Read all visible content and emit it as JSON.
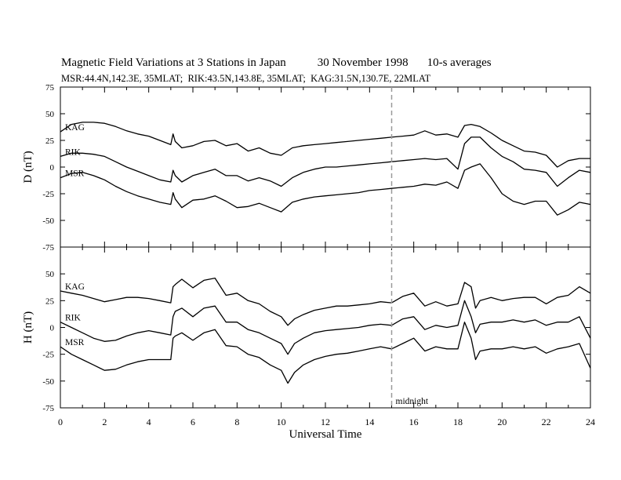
{
  "header": {
    "title": "Magnetic Field Variations at 3 Stations in Japan",
    "date": "30 November 1998",
    "averaging": "10-s averages",
    "stations_line": "MSR:44.4N,142.3E, 35MLAT;  RIK:43.5N,143.8E, 35MLAT;  KAG:31.5N,130.7E, 22MLAT"
  },
  "chart_data": [
    {
      "type": "line",
      "panel": "top",
      "ylabel": "D (nT)",
      "xlim": [
        0,
        24
      ],
      "ylim": [
        -75,
        75
      ],
      "yticks": [
        75,
        50,
        25,
        0,
        -25,
        -50,
        -75
      ],
      "series": [
        {
          "name": "KAG",
          "x": [
            0,
            0.5,
            1,
            1.5,
            2,
            2.5,
            3,
            3.5,
            4,
            4.5,
            5,
            5.1,
            5.2,
            5.5,
            6,
            6.5,
            7,
            7.5,
            8,
            8.5,
            9,
            9.5,
            10,
            10.5,
            11,
            11.5,
            12,
            12.5,
            13,
            13.5,
            14,
            14.5,
            15,
            15.5,
            16,
            16.5,
            17,
            17.5,
            18,
            18.3,
            18.6,
            19,
            19.5,
            20,
            20.5,
            21,
            21.5,
            22,
            22.5,
            23,
            23.5,
            24
          ],
          "y": [
            33,
            40,
            42,
            42,
            41,
            38,
            34,
            31,
            29,
            25,
            21,
            31,
            24,
            18,
            20,
            24,
            25,
            20,
            22,
            15,
            18,
            13,
            11,
            18,
            20,
            21,
            22,
            23,
            24,
            25,
            26,
            27,
            28,
            29,
            30,
            34,
            30,
            31,
            28,
            39,
            40,
            38,
            32,
            25,
            20,
            15,
            14,
            11,
            0,
            6,
            8,
            8
          ]
        },
        {
          "name": "RIK",
          "x": [
            0,
            0.5,
            1,
            1.5,
            2,
            2.5,
            3,
            3.5,
            4,
            4.5,
            5,
            5.1,
            5.2,
            5.5,
            6,
            6.5,
            7,
            7.5,
            8,
            8.5,
            9,
            9.5,
            10,
            10.5,
            11,
            11.5,
            12,
            12.5,
            13,
            13.5,
            14,
            14.5,
            15,
            15.5,
            16,
            16.5,
            17,
            17.5,
            18,
            18.3,
            18.6,
            19,
            19.5,
            20,
            20.5,
            21,
            21.5,
            22,
            22.5,
            23,
            23.5,
            24
          ],
          "y": [
            10,
            13,
            13,
            12,
            10,
            5,
            0,
            -4,
            -8,
            -12,
            -14,
            -3,
            -8,
            -14,
            -8,
            -5,
            -2,
            -8,
            -8,
            -13,
            -10,
            -13,
            -18,
            -10,
            -5,
            -2,
            0,
            0,
            1,
            2,
            3,
            4,
            5,
            6,
            7,
            8,
            7,
            8,
            -2,
            22,
            28,
            28,
            18,
            10,
            5,
            -2,
            -3,
            -5,
            -18,
            -10,
            -3,
            -5
          ]
        },
        {
          "name": "MSR",
          "x": [
            0,
            0.5,
            1,
            1.5,
            2,
            2.5,
            3,
            3.5,
            4,
            4.5,
            5,
            5.1,
            5.2,
            5.5,
            6,
            6.5,
            7,
            7.5,
            8,
            8.5,
            9,
            9.5,
            10,
            10.5,
            11,
            11.5,
            12,
            12.5,
            13,
            13.5,
            14,
            14.5,
            15,
            15.5,
            16,
            16.5,
            17,
            17.5,
            18,
            18.3,
            18.6,
            19,
            19.5,
            20,
            20.5,
            21,
            21.5,
            22,
            22.5,
            23,
            23.5,
            24
          ],
          "y": [
            -10,
            -6,
            -5,
            -8,
            -12,
            -18,
            -23,
            -27,
            -30,
            -33,
            -35,
            -24,
            -30,
            -38,
            -31,
            -30,
            -27,
            -32,
            -38,
            -37,
            -34,
            -38,
            -42,
            -33,
            -30,
            -28,
            -27,
            -26,
            -25,
            -24,
            -22,
            -21,
            -20,
            -19,
            -18,
            -16,
            -17,
            -14,
            -20,
            -3,
            0,
            3,
            -10,
            -25,
            -32,
            -35,
            -32,
            -32,
            -45,
            -40,
            -33,
            -35
          ]
        }
      ],
      "annotations": []
    },
    {
      "type": "line",
      "panel": "bottom",
      "ylabel": "H (nT)",
      "xlabel": "Universal Time",
      "xlim": [
        0,
        24
      ],
      "ylim": [
        -75,
        75
      ],
      "xticks": [
        0,
        2,
        4,
        6,
        8,
        10,
        12,
        14,
        16,
        18,
        20,
        22,
        24
      ],
      "yticks": [
        50,
        25,
        0,
        -25,
        -50,
        -75
      ],
      "series": [
        {
          "name": "KAG",
          "x": [
            0,
            0.5,
            1,
            1.5,
            2,
            2.5,
            3,
            3.5,
            4,
            4.5,
            5,
            5.1,
            5.2,
            5.5,
            6,
            6.5,
            7,
            7.5,
            8,
            8.5,
            9,
            9.5,
            10,
            10.3,
            10.6,
            11,
            11.5,
            12,
            12.5,
            13,
            13.5,
            14,
            14.5,
            15,
            15.5,
            16,
            16.5,
            17,
            17.5,
            18,
            18.3,
            18.6,
            18.8,
            19,
            19.5,
            20,
            20.5,
            21,
            21.5,
            22,
            22.5,
            23,
            23.5,
            24
          ],
          "y": [
            34,
            32,
            30,
            27,
            24,
            26,
            28,
            28,
            27,
            25,
            23,
            38,
            40,
            45,
            37,
            44,
            46,
            30,
            32,
            25,
            22,
            15,
            10,
            2,
            8,
            12,
            16,
            18,
            20,
            20,
            21,
            22,
            24,
            23,
            29,
            32,
            20,
            24,
            20,
            22,
            42,
            38,
            18,
            25,
            28,
            25,
            27,
            28,
            28,
            22,
            28,
            30,
            38,
            32
          ]
        },
        {
          "name": "RIK",
          "x": [
            0,
            0.5,
            1,
            1.5,
            2,
            2.5,
            3,
            3.5,
            4,
            4.5,
            5,
            5.1,
            5.2,
            5.5,
            6,
            6.5,
            7,
            7.5,
            8,
            8.5,
            9,
            9.5,
            10,
            10.3,
            10.6,
            11,
            11.5,
            12,
            12.5,
            13,
            13.5,
            14,
            14.5,
            15,
            15.5,
            16,
            16.5,
            17,
            17.5,
            18,
            18.3,
            18.6,
            18.8,
            19,
            19.5,
            20,
            20.5,
            21,
            21.5,
            22,
            22.5,
            23,
            23.5,
            24
          ],
          "y": [
            5,
            0,
            -5,
            -10,
            -13,
            -12,
            -8,
            -5,
            -3,
            -5,
            -7,
            10,
            15,
            18,
            10,
            18,
            20,
            5,
            5,
            -2,
            -5,
            -10,
            -15,
            -25,
            -15,
            -10,
            -5,
            -3,
            -2,
            -1,
            0,
            2,
            3,
            2,
            8,
            10,
            -2,
            2,
            0,
            2,
            25,
            10,
            -5,
            3,
            5,
            5,
            7,
            5,
            7,
            2,
            5,
            5,
            10,
            -10
          ]
        },
        {
          "name": "MSR",
          "x": [
            0,
            0.5,
            1,
            1.5,
            2,
            2.5,
            3,
            3.5,
            4,
            4.5,
            5,
            5.1,
            5.2,
            5.5,
            6,
            6.5,
            7,
            7.5,
            8,
            8.5,
            9,
            9.5,
            10,
            10.3,
            10.6,
            11,
            11.5,
            12,
            12.5,
            13,
            13.5,
            14,
            14.5,
            15,
            15.5,
            16,
            16.5,
            17,
            17.5,
            18,
            18.3,
            18.6,
            18.8,
            19,
            19.5,
            20,
            20.5,
            21,
            21.5,
            22,
            22.5,
            23,
            23.5,
            24
          ],
          "y": [
            -18,
            -25,
            -30,
            -35,
            -40,
            -39,
            -35,
            -32,
            -30,
            -30,
            -30,
            -10,
            -8,
            -5,
            -12,
            -5,
            -2,
            -17,
            -18,
            -25,
            -28,
            -35,
            -40,
            -52,
            -42,
            -35,
            -30,
            -27,
            -25,
            -24,
            -22,
            -20,
            -18,
            -20,
            -15,
            -10,
            -22,
            -18,
            -20,
            -20,
            5,
            -10,
            -30,
            -22,
            -20,
            -20,
            -18,
            -20,
            -18,
            -24,
            -20,
            -18,
            -15,
            -38
          ]
        }
      ],
      "annotations": [
        {
          "text": "midnight",
          "x": 15
        }
      ]
    }
  ],
  "midnight_ut": 15,
  "colors": {
    "line": "#000000",
    "dashed_marker": "#999999",
    "background": "#ffffff"
  }
}
